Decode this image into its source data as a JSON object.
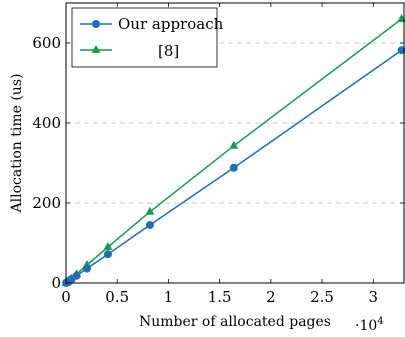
{
  "chart_data": {
    "type": "line",
    "xlabel": "Number of allocated pages",
    "ylabel": "Allocation time (us)",
    "x_multiplier": "·10",
    "x_multiplier_exp": "4",
    "xlim": [
      0,
      3.3
    ],
    "ylim": [
      0,
      700
    ],
    "x_ticks": [
      0,
      0.5,
      1,
      1.5,
      2,
      2.5,
      3
    ],
    "x_tick_labels": [
      "0",
      "0.5",
      "1",
      "1.5",
      "2",
      "2.5",
      "3"
    ],
    "y_ticks": [
      0,
      200,
      400,
      600
    ],
    "y_tick_labels": [
      "0",
      "200",
      "400",
      "600"
    ],
    "grid": "horizontal dashed",
    "legend_position": "top-left",
    "series": [
      {
        "name": "Our approach",
        "color": "#1f6fb4",
        "marker": "circle",
        "x": [
          0.0016,
          0.0032,
          0.0064,
          0.0128,
          0.0256,
          0.0512,
          0.1024,
          0.2048,
          0.4096,
          0.8192,
          1.6384,
          3.2768
        ],
        "y": [
          0.3,
          0.6,
          1.1,
          2.3,
          4.6,
          9,
          18,
          36,
          72,
          145,
          288,
          582
        ]
      },
      {
        "name": "[8]",
        "color": "#1a9a50",
        "marker": "triangle",
        "x": [
          0.0016,
          0.0032,
          0.0064,
          0.0128,
          0.0256,
          0.0512,
          0.1024,
          0.2048,
          0.4096,
          0.8192,
          1.6384,
          3.2768
        ],
        "y": [
          0.4,
          0.7,
          1.3,
          2.7,
          5.5,
          11,
          22,
          45,
          90,
          178,
          343,
          660
        ]
      }
    ]
  }
}
